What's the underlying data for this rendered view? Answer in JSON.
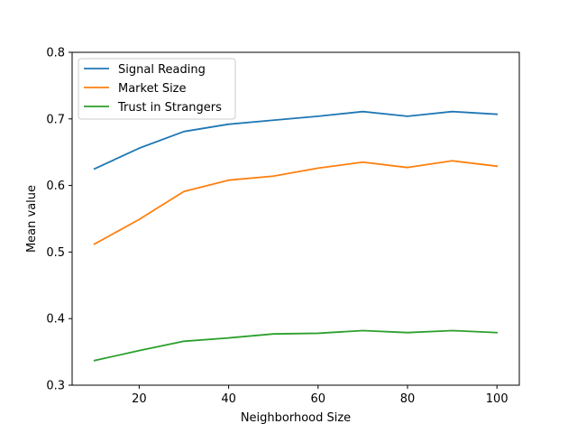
{
  "chart_data": {
    "type": "line",
    "title": "",
    "xlabel": "Neighborhood Size",
    "ylabel": "Mean value",
    "x": [
      10,
      20,
      30,
      40,
      50,
      60,
      70,
      80,
      90,
      100
    ],
    "xlim": [
      5,
      105
    ],
    "ylim": [
      0.3,
      0.8
    ],
    "xticks": [
      20,
      40,
      60,
      80,
      100
    ],
    "xtick_labels": [
      "20",
      "40",
      "60",
      "80",
      "100"
    ],
    "yticks": [
      0.3,
      0.4,
      0.5,
      0.6,
      0.7,
      0.8
    ],
    "ytick_labels": [
      "0.3",
      "0.4",
      "0.5",
      "0.6",
      "0.7",
      "0.8"
    ],
    "grid": false,
    "legend_position": "top-left",
    "series": [
      {
        "name": "Signal Reading",
        "color": "#1f77b4",
        "values": [
          0.625,
          0.656,
          0.681,
          0.692,
          0.698,
          0.704,
          0.711,
          0.704,
          0.711,
          0.707
        ]
      },
      {
        "name": "Market Size",
        "color": "#ff7f0e",
        "values": [
          0.512,
          0.549,
          0.591,
          0.608,
          0.614,
          0.626,
          0.635,
          0.627,
          0.637,
          0.629
        ]
      },
      {
        "name": "Trust in Strangers",
        "color": "#2ca02c",
        "values": [
          0.337,
          0.352,
          0.366,
          0.371,
          0.377,
          0.378,
          0.382,
          0.379,
          0.382,
          0.379
        ]
      }
    ]
  }
}
